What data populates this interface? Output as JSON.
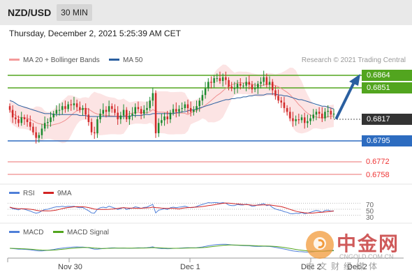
{
  "header": {
    "symbol": "NZD/USD",
    "timeframe": "30 MIN"
  },
  "timestamp": "Thursday, December 2, 2021 5:25:39 AM CET",
  "legend": {
    "bb": "MA 20 + Bollinger Bands",
    "ma50": "MA 50",
    "credit": "Research © 2021 Trading Central"
  },
  "colors": {
    "resistance": "#52a51f",
    "support": "#2d6cc0",
    "pivot": "#333333",
    "target": "#e33333",
    "candle_up": "#1b8a2e",
    "candle_down": "#d22a2a",
    "ma50": "#2a5fa0",
    "ma20": "#f09090",
    "rsi": "#4f7fd8",
    "rsi_ma": "#d22424",
    "macd": "#4f7fd8",
    "macd_signal": "#52a51f",
    "arrow": "#2a5fa0"
  },
  "price_levels": [
    {
      "label": "0.6864",
      "kind": "resistance"
    },
    {
      "label": "0.6851",
      "kind": "resistance"
    },
    {
      "label": "0.6817",
      "kind": "pivot"
    },
    {
      "label": "0.6795",
      "kind": "support"
    },
    {
      "label": "0.6772",
      "kind": "target"
    },
    {
      "label": "0.6758",
      "kind": "target"
    }
  ],
  "rsi": {
    "legend": "RSI",
    "ma_legend": "9MA",
    "levels": [
      "70",
      "50",
      "30"
    ]
  },
  "macd": {
    "legend": "MACD",
    "signal_legend": "MACD Signal"
  },
  "x_axis": [
    "Nov 30",
    "Dec 1",
    "Dec 2",
    "Dec 2"
  ],
  "watermark": {
    "title": "中金网",
    "sub": "CNGOLD.COM.CN",
    "slogan": "中文财经媒体"
  },
  "chart_data": {
    "type": "candlestick",
    "title": "NZD/USD 30 MIN",
    "ylim": [
      0.6744,
      0.6871
    ],
    "closes": [
      0.6822,
      0.6814,
      0.6812,
      0.6808,
      0.6814,
      0.6812,
      0.6809,
      0.6804,
      0.6798,
      0.6792,
      0.6795,
      0.6802,
      0.6808,
      0.6809,
      0.6814,
      0.6818,
      0.6822,
      0.6822,
      0.6826,
      0.6823,
      0.6828,
      0.6827,
      0.6829,
      0.6825,
      0.6822,
      0.6824,
      0.6817,
      0.6809,
      0.6798,
      0.6797,
      0.6812,
      0.6818,
      0.6822,
      0.682,
      0.6826,
      0.6823,
      0.6819,
      0.6812,
      0.6816,
      0.6822,
      0.6812,
      0.6816,
      0.6818,
      0.6825,
      0.6823,
      0.6818,
      0.6822,
      0.6824,
      0.6832,
      0.684,
      0.6797,
      0.6808,
      0.6811,
      0.6815,
      0.6812,
      0.6819,
      0.6823,
      0.682,
      0.6823,
      0.6824,
      0.6828,
      0.6824,
      0.682,
      0.6822,
      0.6826,
      0.6832,
      0.6838,
      0.6845,
      0.6852,
      0.6851,
      0.6856,
      0.6856,
      0.6853,
      0.6857,
      0.6854,
      0.6847,
      0.6845,
      0.6845,
      0.685,
      0.6848,
      0.6848,
      0.6852,
      0.6849,
      0.6844,
      0.6845,
      0.685,
      0.6852,
      0.6857,
      0.6849,
      0.6852,
      0.6843,
      0.6837,
      0.6832,
      0.683,
      0.6824,
      0.682,
      0.6813,
      0.681,
      0.6812,
      0.6811,
      0.6814,
      0.6808,
      0.681,
      0.6813,
      0.6817,
      0.682,
      0.6818,
      0.6813,
      0.682,
      0.6821,
      0.6817,
      0.6818
    ],
    "ma50": [
      0.6832,
      0.6831,
      0.6829,
      0.6827,
      0.6826,
      0.6825,
      0.6824,
      0.6823,
      0.6822,
      0.6821,
      0.682,
      0.6819,
      0.6818,
      0.6818,
      0.6818,
      0.6817,
      0.6817,
      0.6817,
      0.6817,
      0.6817,
      0.6817,
      0.6817,
      0.6817,
      0.6817,
      0.6816,
      0.6816,
      0.6816,
      0.6815,
      0.6815,
      0.6815,
      0.6815,
      0.6815,
      0.6815,
      0.6815,
      0.6815,
      0.6815,
      0.6815,
      0.6815,
      0.6815,
      0.6815,
      0.6815,
      0.6815,
      0.6816,
      0.6816,
      0.6816,
      0.6816,
      0.6817,
      0.6817,
      0.6817,
      0.6818,
      0.6818,
      0.6818,
      0.6818,
      0.6818,
      0.6818,
      0.6818,
      0.6818,
      0.6819,
      0.6819,
      0.682,
      0.682,
      0.6821,
      0.6822,
      0.6822,
      0.6823,
      0.6824,
      0.6825,
      0.6826,
      0.6827,
      0.6828,
      0.6829,
      0.683,
      0.6831,
      0.6832,
      0.6833,
      0.6833,
      0.6834,
      0.6834,
      0.6835,
      0.6835,
      0.6836,
      0.6836,
      0.6837,
      0.6837,
      0.6838,
      0.6838,
      0.6838,
      0.6838,
      0.6839,
      0.6839,
      0.6839,
      0.6839,
      0.6838,
      0.6838,
      0.6837,
      0.6837,
      0.6836,
      0.6835,
      0.6834,
      0.6833,
      0.6833,
      0.6832,
      0.6831,
      0.683,
      0.6829,
      0.6828,
      0.6827,
      0.6826,
      0.6826,
      0.6825,
      0.6824,
      0.6823
    ],
    "rsi": [
      57,
      52,
      50,
      48,
      52,
      50,
      47,
      44,
      40,
      37,
      39,
      45,
      49,
      50,
      53,
      56,
      58,
      58,
      60,
      58,
      60,
      59,
      60,
      57,
      55,
      56,
      50,
      45,
      38,
      37,
      50,
      55,
      57,
      55,
      60,
      57,
      54,
      49,
      52,
      56,
      49,
      52,
      54,
      58,
      56,
      53,
      56,
      57,
      62,
      66,
      38,
      47,
      49,
      52,
      49,
      55,
      57,
      55,
      57,
      58,
      60,
      57,
      55,
      56,
      59,
      63,
      66,
      69,
      72,
      71,
      72,
      72,
      70,
      72,
      70,
      64,
      62,
      62,
      66,
      64,
      64,
      67,
      64,
      60,
      61,
      65,
      66,
      69,
      62,
      64,
      56,
      51,
      48,
      46,
      42,
      40,
      36,
      35,
      37,
      36,
      39,
      35,
      37,
      40,
      43,
      46,
      44,
      40,
      46,
      47,
      44,
      45
    ]
  }
}
